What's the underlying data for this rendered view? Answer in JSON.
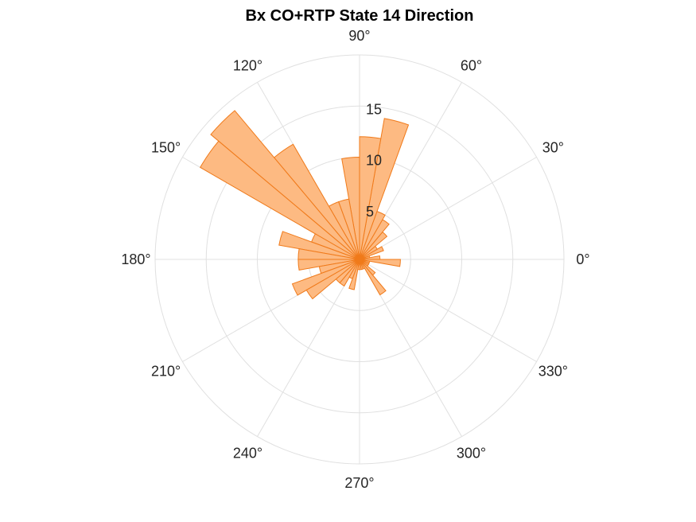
{
  "chart_data": {
    "type": "polar-histogram",
    "title": "Bx  CO+RTP State 14 Direction",
    "theta_ticks_deg": [
      0,
      30,
      60,
      90,
      120,
      150,
      180,
      210,
      240,
      270,
      300,
      330
    ],
    "theta_tick_labels": [
      "0°",
      "30°",
      "60°",
      "90°",
      "120°",
      "150°",
      "180°",
      "210°",
      "240°",
      "270°",
      "300°",
      "330°"
    ],
    "r_ticks": [
      5,
      10,
      15
    ],
    "r_tick_labels": [
      "5",
      "10",
      "15"
    ],
    "rlim": [
      0,
      20
    ],
    "grid": true,
    "bin_width_deg": 10,
    "bins": [
      {
        "start": 0,
        "end": 10,
        "count": 2
      },
      {
        "start": 10,
        "end": 20,
        "count": 1
      },
      {
        "start": 20,
        "end": 30,
        "count": 2.5
      },
      {
        "start": 30,
        "end": 40,
        "count": 2
      },
      {
        "start": 40,
        "end": 50,
        "count": 3.5
      },
      {
        "start": 50,
        "end": 60,
        "count": 4.5
      },
      {
        "start": 60,
        "end": 70,
        "count": 5
      },
      {
        "start": 70,
        "end": 80,
        "count": 14
      },
      {
        "start": 80,
        "end": 90,
        "count": 12
      },
      {
        "start": 90,
        "end": 100,
        "count": 10
      },
      {
        "start": 100,
        "end": 110,
        "count": 6
      },
      {
        "start": 110,
        "end": 120,
        "count": 6
      },
      {
        "start": 120,
        "end": 130,
        "count": 13
      },
      {
        "start": 130,
        "end": 140,
        "count": 19
      },
      {
        "start": 140,
        "end": 150,
        "count": 18
      },
      {
        "start": 150,
        "end": 160,
        "count": 5
      },
      {
        "start": 160,
        "end": 170,
        "count": 8
      },
      {
        "start": 170,
        "end": 180,
        "count": 6
      },
      {
        "start": 180,
        "end": 190,
        "count": 6
      },
      {
        "start": 190,
        "end": 200,
        "count": 4
      },
      {
        "start": 200,
        "end": 210,
        "count": 7
      },
      {
        "start": 210,
        "end": 220,
        "count": 6
      },
      {
        "start": 220,
        "end": 230,
        "count": 3
      },
      {
        "start": 230,
        "end": 240,
        "count": 3
      },
      {
        "start": 240,
        "end": 250,
        "count": 2
      },
      {
        "start": 250,
        "end": 260,
        "count": 3
      },
      {
        "start": 260,
        "end": 270,
        "count": 1
      },
      {
        "start": 270,
        "end": 280,
        "count": 1
      },
      {
        "start": 280,
        "end": 290,
        "count": 1
      },
      {
        "start": 290,
        "end": 300,
        "count": 1
      },
      {
        "start": 300,
        "end": 310,
        "count": 4
      },
      {
        "start": 310,
        "end": 320,
        "count": 2
      },
      {
        "start": 320,
        "end": 330,
        "count": 1
      },
      {
        "start": 330,
        "end": 340,
        "count": 1
      },
      {
        "start": 340,
        "end": 350,
        "count": 1
      },
      {
        "start": 350,
        "end": 360,
        "count": 4
      }
    ],
    "colors": {
      "bar_fill": "#fdba82",
      "bar_stroke": "#f07a1a",
      "center_marker": "#f07a1a"
    }
  }
}
